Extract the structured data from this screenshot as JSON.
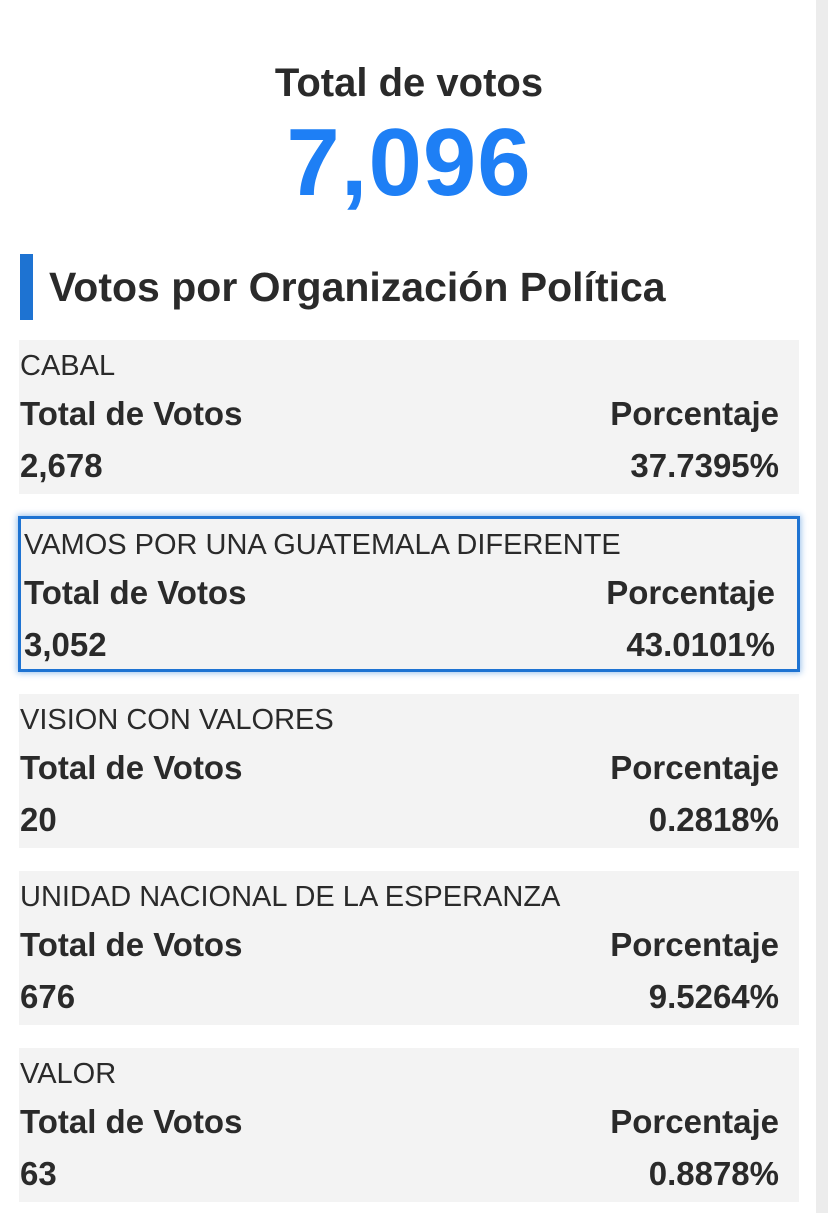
{
  "header": {
    "total_label": "Total de votos",
    "total_value": "7,096",
    "accent_color": "#1e7ff5"
  },
  "section": {
    "title": "Votos por Organización Política",
    "bar_color": "#1e73d2"
  },
  "labels": {
    "votes": "Total de Votos",
    "percent": "Porcentaje"
  },
  "parties": [
    {
      "name": "CABAL",
      "votes": "2,678",
      "percent": "37.7395%"
    },
    {
      "name": "VAMOS POR UNA GUATEMALA DIFERENTE",
      "votes": "3,052",
      "percent": "43.0101%",
      "selected": true
    },
    {
      "name": "VISION CON VALORES",
      "votes": "20",
      "percent": "0.2818%"
    },
    {
      "name": "UNIDAD NACIONAL DE LA ESPERANZA",
      "votes": "676",
      "percent": "9.5264%"
    },
    {
      "name": "VALOR",
      "votes": "63",
      "percent": "0.8878%"
    }
  ]
}
